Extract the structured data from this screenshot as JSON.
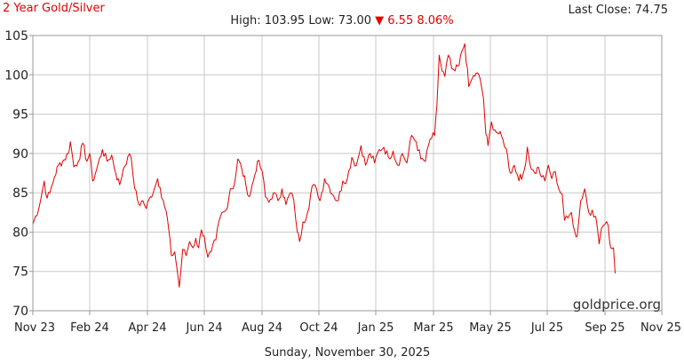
{
  "header": {
    "title": "2 Year Gold/Silver",
    "last_close_label": "Last Close:",
    "last_close_value": "74.75",
    "high_label": "High:",
    "high_value": "103.95",
    "low_label": "Low:",
    "low_value": "73.00",
    "change_arrow": "▼",
    "change_value": "6.55",
    "change_percent": "8.06%"
  },
  "watermark": "goldprice.org",
  "footer_date": "Sunday, November 30, 2025",
  "colors": {
    "line": "#e00000",
    "grid": "#c8c8c8",
    "axis": "#999999",
    "down": "#e00000"
  },
  "chart_data": {
    "type": "line",
    "title": "2 Year Gold/Silver",
    "xlabel": "",
    "ylabel": "",
    "grid": true,
    "x_ticks": [
      "Nov 23",
      "Feb 24",
      "Apr 24",
      "Jun 24",
      "Aug 24",
      "Oct 24",
      "Jan 25",
      "Mar 25",
      "May 25",
      "Jul 25",
      "Sep 25",
      "Nov 25"
    ],
    "ylim": [
      70,
      105
    ],
    "y_ticks": [
      "70",
      "75",
      "80",
      "85",
      "90",
      "95",
      "100",
      "105"
    ],
    "series": [
      {
        "points": [
          [
            0,
            81.0
          ],
          [
            0.12,
            83.5
          ],
          [
            0.2,
            86.5
          ],
          [
            0.25,
            84.3
          ],
          [
            0.3,
            85.0
          ],
          [
            0.38,
            87.0
          ],
          [
            0.45,
            88.5
          ],
          [
            0.55,
            89.2
          ],
          [
            0.62,
            90.0
          ],
          [
            0.66,
            91.5
          ],
          [
            0.72,
            88.3
          ],
          [
            0.8,
            89.0
          ],
          [
            0.88,
            91.3
          ],
          [
            0.95,
            89.0
          ],
          [
            1.0,
            90.0
          ],
          [
            1.05,
            86.5
          ],
          [
            1.12,
            88.0
          ],
          [
            1.22,
            90.5
          ],
          [
            1.3,
            89.0
          ],
          [
            1.38,
            89.8
          ],
          [
            1.45,
            87.5
          ],
          [
            1.52,
            86.0
          ],
          [
            1.58,
            88.0
          ],
          [
            1.66,
            89.6
          ],
          [
            1.72,
            89.4
          ],
          [
            1.78,
            85.5
          ],
          [
            1.85,
            83.5
          ],
          [
            1.92,
            84.0
          ],
          [
            1.98,
            83.0
          ],
          [
            2.05,
            84.5
          ],
          [
            2.12,
            85.5
          ],
          [
            2.18,
            86.8
          ],
          [
            2.22,
            85.7
          ],
          [
            2.28,
            84.0
          ],
          [
            2.35,
            81.8
          ],
          [
            2.42,
            77.0
          ],
          [
            2.48,
            77.5
          ],
          [
            2.52,
            75.3
          ],
          [
            2.56,
            73.0
          ],
          [
            2.62,
            77.8
          ],
          [
            2.68,
            77.0
          ],
          [
            2.74,
            78.8
          ],
          [
            2.8,
            78.0
          ],
          [
            2.85,
            79.2
          ],
          [
            2.9,
            78.0
          ],
          [
            2.95,
            80.3
          ],
          [
            3.0,
            79.5
          ],
          [
            3.06,
            76.8
          ],
          [
            3.12,
            77.5
          ],
          [
            3.2,
            79.0
          ],
          [
            3.28,
            82.0
          ],
          [
            3.38,
            82.8
          ],
          [
            3.45,
            85.5
          ],
          [
            3.52,
            86.0
          ],
          [
            3.58,
            89.3
          ],
          [
            3.65,
            88.0
          ],
          [
            3.72,
            86.0
          ],
          [
            3.78,
            84.5
          ],
          [
            3.85,
            86.5
          ],
          [
            3.92,
            89.0
          ],
          [
            4.0,
            87.8
          ],
          [
            4.06,
            84.5
          ],
          [
            4.12,
            83.8
          ],
          [
            4.2,
            85.0
          ],
          [
            4.28,
            84.0
          ],
          [
            4.35,
            85.5
          ],
          [
            4.42,
            83.5
          ],
          [
            4.5,
            85.0
          ],
          [
            4.56,
            84.0
          ],
          [
            4.62,
            80.0
          ],
          [
            4.66,
            78.8
          ],
          [
            4.72,
            81.3
          ],
          [
            4.8,
            82.5
          ],
          [
            4.88,
            85.8
          ],
          [
            4.96,
            85.5
          ],
          [
            5.02,
            84.0
          ],
          [
            5.1,
            86.8
          ],
          [
            5.18,
            85.8
          ],
          [
            5.26,
            84.6
          ],
          [
            5.34,
            84.0
          ],
          [
            5.42,
            86.5
          ],
          [
            5.5,
            86.8
          ],
          [
            5.58,
            89.5
          ],
          [
            5.66,
            88.5
          ],
          [
            5.74,
            91.0
          ],
          [
            5.82,
            88.5
          ],
          [
            5.9,
            90.0
          ],
          [
            5.98,
            88.8
          ],
          [
            6.06,
            90.5
          ],
          [
            6.14,
            90.8
          ],
          [
            6.22,
            89.5
          ],
          [
            6.3,
            90.3
          ],
          [
            6.38,
            88.5
          ],
          [
            6.46,
            90.0
          ],
          [
            6.54,
            88.8
          ],
          [
            6.62,
            92.3
          ],
          [
            6.7,
            91.5
          ],
          [
            6.78,
            89.3
          ],
          [
            6.86,
            89.0
          ],
          [
            6.94,
            91.8
          ],
          [
            7.02,
            92.3
          ],
          [
            7.06,
            96.0
          ],
          [
            7.1,
            102.5
          ],
          [
            7.15,
            100.5
          ],
          [
            7.2,
            99.8
          ],
          [
            7.26,
            102.5
          ],
          [
            7.32,
            100.8
          ],
          [
            7.38,
            100.5
          ],
          [
            7.45,
            101.2
          ],
          [
            7.5,
            103.0
          ],
          [
            7.55,
            103.95
          ],
          [
            7.62,
            98.5
          ],
          [
            7.68,
            99.5
          ],
          [
            7.75,
            100.2
          ],
          [
            7.82,
            99.5
          ],
          [
            7.88,
            97.0
          ],
          [
            7.92,
            92.5
          ],
          [
            7.96,
            91.0
          ],
          [
            8.02,
            94.0
          ],
          [
            8.08,
            93.0
          ],
          [
            8.15,
            92.5
          ],
          [
            8.22,
            91.8
          ],
          [
            8.28,
            90.6
          ],
          [
            8.35,
            87.5
          ],
          [
            8.42,
            88.5
          ],
          [
            8.48,
            87.2
          ],
          [
            8.55,
            86.7
          ],
          [
            8.6,
            88.0
          ],
          [
            8.65,
            90.8
          ],
          [
            8.72,
            88.0
          ],
          [
            8.78,
            87.5
          ],
          [
            8.85,
            88.2
          ],
          [
            8.9,
            87.0
          ],
          [
            8.96,
            86.5
          ],
          [
            9.02,
            88.5
          ],
          [
            9.08,
            86.8
          ],
          [
            9.14,
            87.7
          ],
          [
            9.2,
            85.5
          ],
          [
            9.26,
            84.8
          ],
          [
            9.3,
            81.5
          ],
          [
            9.36,
            81.8
          ],
          [
            9.42,
            82.5
          ],
          [
            9.48,
            80.0
          ],
          [
            9.52,
            79.5
          ],
          [
            9.58,
            84.0
          ],
          [
            9.65,
            85.5
          ],
          [
            9.72,
            82.5
          ],
          [
            9.78,
            82.8
          ],
          [
            9.84,
            82.0
          ],
          [
            9.9,
            78.5
          ],
          [
            9.94,
            80.5
          ],
          [
            10.0,
            81.0
          ],
          [
            10.06,
            80.8
          ],
          [
            10.1,
            78.0
          ],
          [
            10.15,
            78.0
          ],
          [
            10.18,
            74.75
          ]
        ]
      }
    ]
  }
}
